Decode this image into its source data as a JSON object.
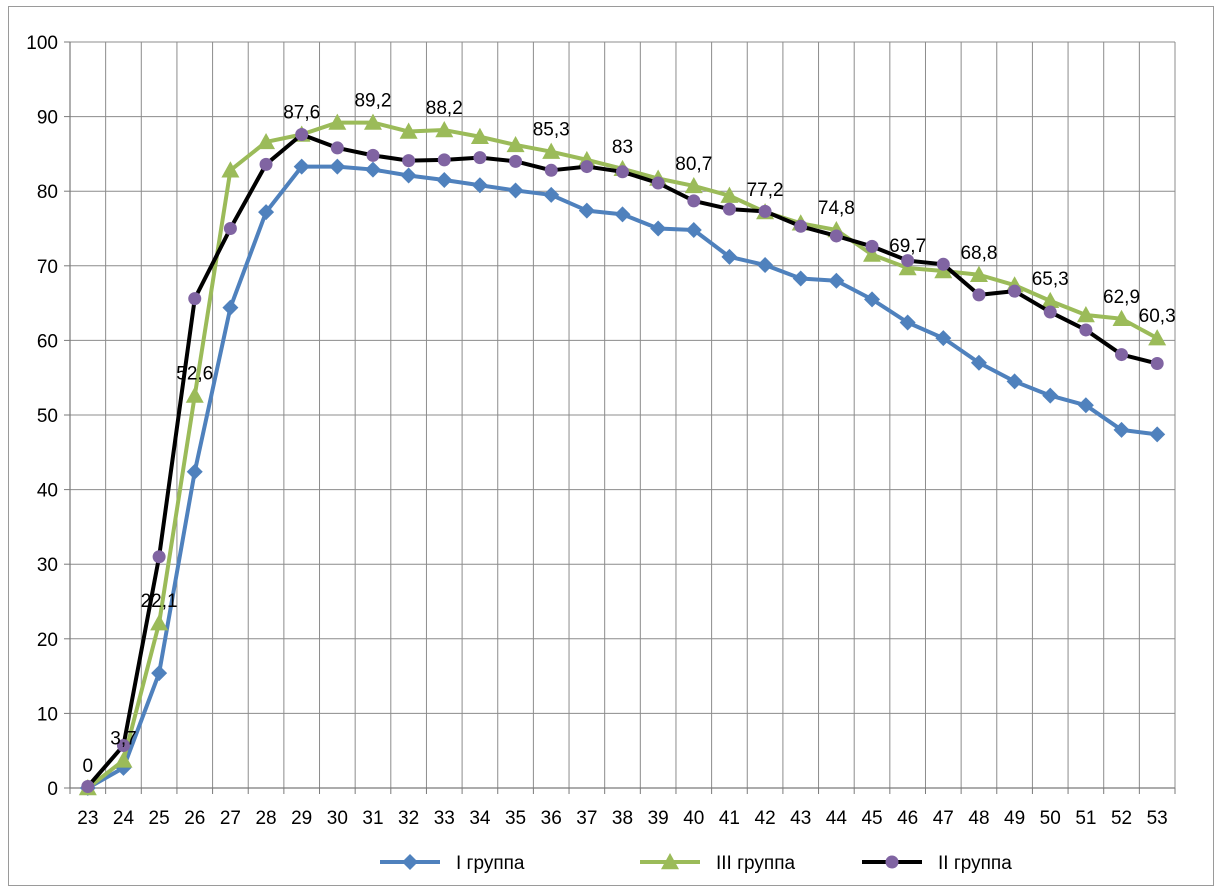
{
  "chart_data": {
    "type": "line",
    "x": [
      23,
      24,
      25,
      26,
      27,
      28,
      29,
      30,
      31,
      32,
      33,
      34,
      35,
      36,
      37,
      38,
      39,
      40,
      41,
      42,
      43,
      44,
      45,
      46,
      47,
      48,
      49,
      50,
      51,
      52,
      53
    ],
    "ylim": [
      0,
      100
    ],
    "yticks": [
      0,
      10,
      20,
      30,
      40,
      50,
      60,
      70,
      80,
      90,
      100
    ],
    "grid": true,
    "legend_position": "bottom",
    "series": [
      {
        "name": "I группа",
        "color": "#4F81BD",
        "marker": "diamond",
        "values": [
          0,
          2.7,
          15.4,
          42.4,
          64.4,
          77.2,
          83.3,
          83.3,
          82.9,
          82.1,
          81.5,
          80.8,
          80.1,
          79.5,
          77.4,
          76.9,
          75.0,
          74.8,
          71.2,
          70.1,
          68.3,
          68.0,
          65.5,
          62.4,
          60.3,
          57.0,
          54.5,
          52.6,
          51.3,
          48.0,
          47.4
        ]
      },
      {
        "name": "III группа",
        "color": "#9BBB59",
        "marker": "triangle",
        "values": [
          0,
          3.7,
          22.1,
          52.6,
          82.8,
          86.6,
          87.6,
          89.2,
          89.2,
          88.0,
          88.2,
          87.3,
          86.2,
          85.3,
          84.2,
          83.0,
          81.7,
          80.7,
          79.4,
          77.2,
          75.7,
          74.8,
          71.5,
          69.7,
          69.3,
          68.8,
          67.4,
          65.3,
          63.4,
          62.9,
          60.3
        ]
      },
      {
        "name": "II группа",
        "color": "#000000",
        "marker": "circle",
        "markerColor": "#8064A2",
        "values": [
          0.2,
          5.7,
          31.0,
          65.6,
          75.0,
          83.6,
          87.6,
          85.8,
          84.8,
          84.1,
          84.2,
          84.5,
          84.0,
          82.8,
          83.3,
          82.6,
          81.1,
          78.7,
          77.6,
          77.3,
          75.3,
          74.0,
          72.6,
          70.7,
          70.2,
          66.1,
          66.6,
          63.8,
          61.4,
          58.1,
          56.9
        ]
      }
    ],
    "data_labels": [
      {
        "x": 23,
        "text": "0"
      },
      {
        "x": 24,
        "text": "3,7"
      },
      {
        "x": 25,
        "text": "22,1"
      },
      {
        "x": 26,
        "text": "52,6"
      },
      {
        "x": 29,
        "text": "87,6"
      },
      {
        "x": 31,
        "text": "89,2"
      },
      {
        "x": 33,
        "text": "88,2"
      },
      {
        "x": 36,
        "text": "85,3"
      },
      {
        "x": 38,
        "text": "83"
      },
      {
        "x": 40,
        "text": "80,7"
      },
      {
        "x": 42,
        "text": "77,2"
      },
      {
        "x": 44,
        "text": "74,8"
      },
      {
        "x": 46,
        "text": "69,7"
      },
      {
        "x": 48,
        "text": "68,8"
      },
      {
        "x": 50,
        "text": "65,3"
      },
      {
        "x": 52,
        "text": "62,9"
      },
      {
        "x": 53,
        "text": "60,3"
      }
    ]
  }
}
